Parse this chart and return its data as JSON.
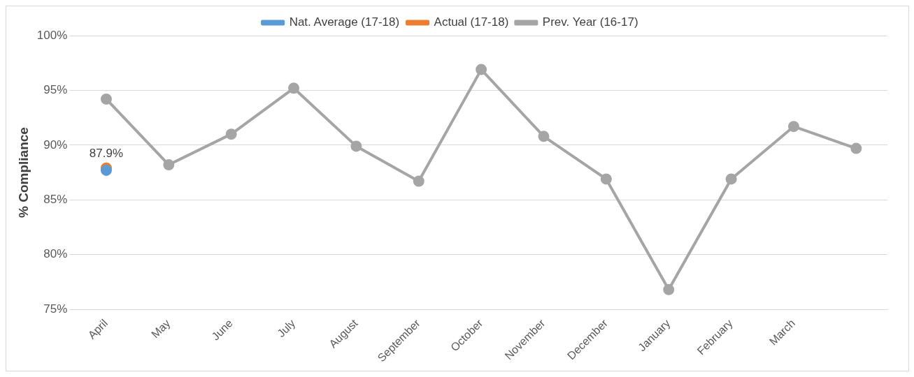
{
  "chart_data": {
    "type": "line",
    "ylabel": "% Compliance",
    "categories": [
      "April",
      "May",
      "June",
      "July",
      "August",
      "September",
      "October",
      "November",
      "December",
      "January",
      "February",
      "March",
      null
    ],
    "series": [
      {
        "name": "Nat. Average (17-18)",
        "color": "#5b9bd5",
        "values": [
          87.7,
          null,
          null,
          null,
          null,
          null,
          null,
          null,
          null,
          null,
          null,
          null,
          null
        ]
      },
      {
        "name": "Actual (17-18)",
        "color": "#ed7d31",
        "values": [
          87.9,
          null,
          null,
          null,
          null,
          null,
          null,
          null,
          null,
          null,
          null,
          null,
          null
        ],
        "value_labels": [
          "87.9%",
          null,
          null,
          null,
          null,
          null,
          null,
          null,
          null,
          null,
          null,
          null,
          null
        ]
      },
      {
        "name": "Prev. Year (16-17)",
        "color": "#a5a5a5",
        "values": [
          94.2,
          88.2,
          91.0,
          95.2,
          89.9,
          86.7,
          96.9,
          90.8,
          86.9,
          76.8,
          86.9,
          91.7,
          89.7
        ]
      }
    ],
    "ylim": [
      75,
      100
    ],
    "yticks": [
      {
        "value": 75,
        "label": "75%"
      },
      {
        "value": 80,
        "label": "80%"
      },
      {
        "value": 85,
        "label": "85%"
      },
      {
        "value": 90,
        "label": "90%"
      },
      {
        "value": 95,
        "label": "95%"
      },
      {
        "value": 100,
        "label": "100%"
      }
    ],
    "grid": "y",
    "legend": "top",
    "marker": "circle",
    "line_style": "solid"
  }
}
